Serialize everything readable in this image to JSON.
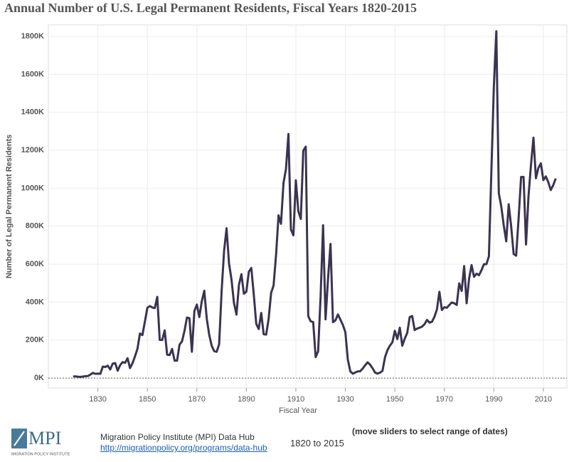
{
  "chart_data": {
    "type": "line",
    "title": "Annual Number of U.S. Legal Permanent Residents, Fiscal Years 1820-2015",
    "x_label": "Fiscal Year",
    "y_label": "Number of Legal Permanent Residents",
    "x": [
      1820,
      1821,
      1822,
      1823,
      1824,
      1825,
      1826,
      1827,
      1828,
      1829,
      1830,
      1831,
      1832,
      1833,
      1834,
      1835,
      1836,
      1837,
      1838,
      1839,
      1840,
      1841,
      1842,
      1843,
      1844,
      1845,
      1846,
      1847,
      1848,
      1849,
      1850,
      1851,
      1852,
      1853,
      1854,
      1855,
      1856,
      1857,
      1858,
      1859,
      1860,
      1861,
      1862,
      1863,
      1864,
      1865,
      1866,
      1867,
      1868,
      1869,
      1870,
      1871,
      1872,
      1873,
      1874,
      1875,
      1876,
      1877,
      1878,
      1879,
      1880,
      1881,
      1882,
      1883,
      1884,
      1885,
      1886,
      1887,
      1888,
      1889,
      1890,
      1891,
      1892,
      1893,
      1894,
      1895,
      1896,
      1897,
      1898,
      1899,
      1900,
      1901,
      1902,
      1903,
      1904,
      1905,
      1906,
      1907,
      1908,
      1909,
      1910,
      1911,
      1912,
      1913,
      1914,
      1915,
      1916,
      1917,
      1918,
      1919,
      1920,
      1921,
      1922,
      1923,
      1924,
      1925,
      1926,
      1927,
      1928,
      1929,
      1930,
      1931,
      1932,
      1933,
      1934,
      1935,
      1936,
      1937,
      1938,
      1939,
      1940,
      1941,
      1942,
      1943,
      1944,
      1945,
      1946,
      1947,
      1948,
      1949,
      1950,
      1951,
      1952,
      1953,
      1954,
      1955,
      1956,
      1957,
      1958,
      1959,
      1960,
      1961,
      1962,
      1963,
      1964,
      1965,
      1966,
      1967,
      1968,
      1969,
      1970,
      1971,
      1972,
      1973,
      1974,
      1975,
      1976,
      1977,
      1978,
      1979,
      1980,
      1981,
      1982,
      1983,
      1984,
      1985,
      1986,
      1987,
      1988,
      1989,
      1990,
      1991,
      1992,
      1993,
      1994,
      1995,
      1996,
      1997,
      1998,
      1999,
      2000,
      2001,
      2002,
      2003,
      2004,
      2005,
      2006,
      2007,
      2008,
      2009,
      2010,
      2011,
      2012,
      2013,
      2014,
      2015
    ],
    "values": [
      8400,
      9100,
      6900,
      6400,
      7900,
      10200,
      10800,
      18900,
      27400,
      22500,
      23300,
      22600,
      60500,
      58600,
      65400,
      45400,
      76200,
      79300,
      38900,
      68100,
      84100,
      80300,
      104600,
      52500,
      78600,
      114400,
      154400,
      234900,
      226500,
      297000,
      370000,
      379500,
      371600,
      368600,
      427800,
      200900,
      200400,
      251300,
      123100,
      121300,
      153600,
      91900,
      92000,
      176300,
      193400,
      248100,
      318600,
      315700,
      138800,
      352800,
      387200,
      321400,
      404800,
      460000,
      313300,
      227500,
      170000,
      141900,
      138500,
      177800,
      457300,
      669400,
      789000,
      603300,
      518600,
      395300,
      334200,
      490100,
      547000,
      444400,
      455300,
      560300,
      579700,
      439700,
      285600,
      258500,
      343300,
      230800,
      229300,
      311700,
      448600,
      487900,
      648700,
      857000,
      812900,
      1026500,
      1100700,
      1285300,
      782900,
      751800,
      1041600,
      878600,
      838200,
      1197900,
      1218500,
      326700,
      298800,
      295400,
      110600,
      141100,
      430000,
      805200,
      309600,
      522900,
      706900,
      294300,
      304500,
      335200,
      307300,
      279700,
      241700,
      97100,
      35600,
      23100,
      29500,
      35000,
      36300,
      50200,
      67900,
      83000,
      70800,
      51800,
      28800,
      23700,
      28600,
      38100,
      108700,
      147300,
      170600,
      188300,
      249200,
      205700,
      265500,
      170400,
      208200,
      237800,
      321600,
      326900,
      253300,
      260700,
      265400,
      271300,
      283800,
      306300,
      292200,
      297000,
      323000,
      362000,
      454400,
      358600,
      373300,
      370500,
      384700,
      398500,
      393900,
      385400,
      499100,
      458800,
      589800,
      394200,
      524300,
      595000,
      533600,
      550100,
      541800,
      568100,
      600000,
      599900,
      641300,
      1090200,
      1535900,
      1826600,
      973400,
      903900,
      804000,
      720200,
      915600,
      797800,
      653200,
      644800,
      841000,
      1058900,
      1059400,
      703500,
      957900,
      1122300,
      1266100,
      1052400,
      1107100,
      1130800,
      1042600,
      1062000,
      1031600,
      990600,
      1016500,
      1051000
    ],
    "color": "#3b3350",
    "xlim": [
      1810,
      2019.5
    ],
    "xticks": [
      1830,
      1850,
      1870,
      1890,
      1910,
      1930,
      1950,
      1970,
      1990,
      2010
    ],
    "ylim": [
      -52000,
      1860000
    ],
    "yticks": [
      {
        "value": 0,
        "label": "0K"
      },
      {
        "value": 200000,
        "label": "200K"
      },
      {
        "value": 400000,
        "label": "400K"
      },
      {
        "value": 600000,
        "label": "600K"
      },
      {
        "value": 800000,
        "label": "800K"
      },
      {
        "value": 1000000,
        "label": "1000K"
      },
      {
        "value": 1200000,
        "label": "1200K"
      },
      {
        "value": 1400000,
        "label": "1400K"
      },
      {
        "value": 1600000,
        "label": "1600K"
      },
      {
        "value": 1800000,
        "label": "1800K"
      }
    ],
    "grid": true
  },
  "footer": {
    "logo": "MPI",
    "logo_sub": "MIGRATION POLICY INSTITUTE",
    "source": "Migration Policy Institute (MPI) Data Hub",
    "link": "http://migrationpolicy.org/programs/data-hub",
    "range": "1820 to 2015",
    "hint": "(move sliders to select range of dates)"
  }
}
